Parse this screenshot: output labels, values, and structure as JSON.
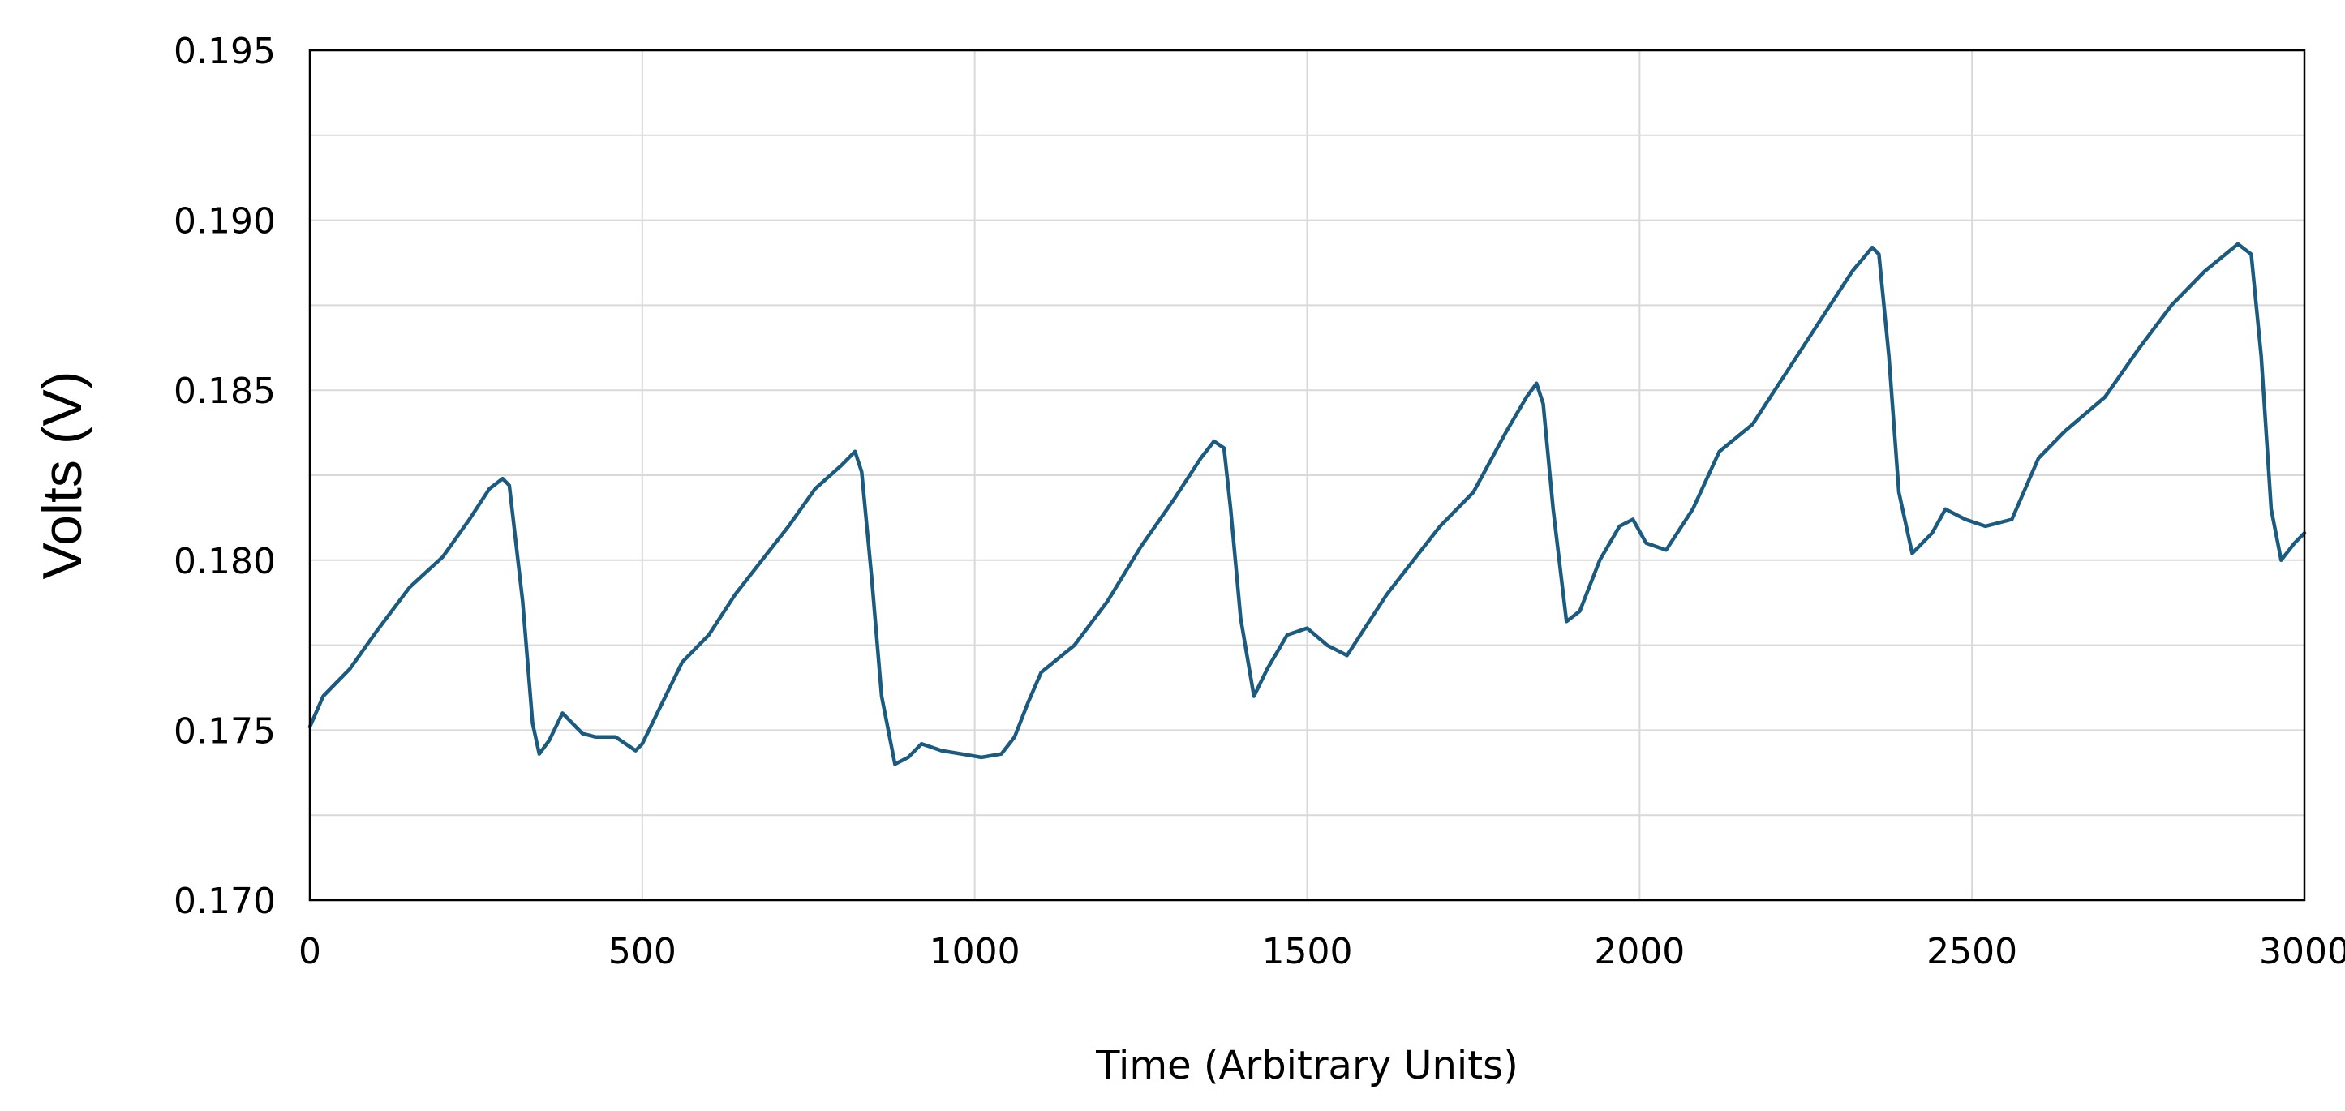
{
  "chart_data": {
    "type": "line",
    "title": "",
    "xlabel": "Time (Arbitrary Units)",
    "ylabel": "Volts (V)",
    "xlim": [
      0,
      3000
    ],
    "ylim": [
      0.17,
      0.195
    ],
    "x_ticks": [
      0,
      500,
      1000,
      1500,
      2000,
      2500,
      3000
    ],
    "x_tick_labels": [
      "0",
      "500",
      "1000",
      "1500",
      "2000",
      "2500",
      "3000"
    ],
    "y_ticks": [
      0.17,
      0.175,
      0.18,
      0.185,
      0.19,
      0.195
    ],
    "y_tick_labels": [
      "0.170",
      "0.175",
      "0.180",
      "0.185",
      "0.190",
      "0.195"
    ],
    "grid": true,
    "legend": "none",
    "series": [
      {
        "color": "#1b5b80",
        "x": [
          0,
          20,
          60,
          100,
          150,
          200,
          240,
          270,
          290,
          300,
          320,
          335,
          345,
          360,
          380,
          395,
          410,
          430,
          460,
          490,
          500,
          530,
          560,
          600,
          640,
          680,
          720,
          760,
          800,
          820,
          830,
          845,
          860,
          880,
          900,
          920,
          950,
          980,
          1010,
          1040,
          1060,
          1080,
          1100,
          1150,
          1200,
          1250,
          1300,
          1340,
          1360,
          1375,
          1385,
          1400,
          1420,
          1440,
          1470,
          1500,
          1530,
          1560,
          1580,
          1620,
          1660,
          1700,
          1750,
          1800,
          1830,
          1845,
          1855,
          1870,
          1890,
          1910,
          1940,
          1970,
          1990,
          2010,
          2040,
          2080,
          2120,
          2170,
          2220,
          2270,
          2320,
          2350,
          2360,
          2375,
          2390,
          2410,
          2440,
          2460,
          2490,
          2520,
          2560,
          2600,
          2640,
          2700,
          2750,
          2800,
          2850,
          2900,
          2920,
          2935,
          2950,
          2965,
          2985,
          3000
        ],
        "values": [
          0.1751,
          0.176,
          0.1768,
          0.1779,
          0.1792,
          0.1801,
          0.1812,
          0.1821,
          0.1824,
          0.1822,
          0.1788,
          0.1752,
          0.1743,
          0.1747,
          0.1755,
          0.1752,
          0.1749,
          0.1748,
          0.1748,
          0.1744,
          0.1746,
          0.1758,
          0.177,
          0.1778,
          0.179,
          0.18,
          0.181,
          0.1821,
          0.1828,
          0.1832,
          0.1826,
          0.1795,
          0.176,
          0.174,
          0.1742,
          0.1746,
          0.1744,
          0.1743,
          0.1742,
          0.1743,
          0.1748,
          0.1758,
          0.1767,
          0.1775,
          0.1788,
          0.1804,
          0.1818,
          0.183,
          0.1835,
          0.1833,
          0.1815,
          0.1783,
          0.176,
          0.1768,
          0.1778,
          0.178,
          0.1775,
          0.1772,
          0.1778,
          0.179,
          0.18,
          0.181,
          0.182,
          0.1838,
          0.1848,
          0.1852,
          0.1846,
          0.1815,
          0.1782,
          0.1785,
          0.18,
          0.181,
          0.1812,
          0.1805,
          0.1803,
          0.1815,
          0.1832,
          0.184,
          0.1855,
          0.187,
          0.1885,
          0.1892,
          0.189,
          0.186,
          0.182,
          0.1802,
          0.1808,
          0.1815,
          0.1812,
          0.181,
          0.1812,
          0.183,
          0.1838,
          0.1848,
          0.1862,
          0.1875,
          0.1885,
          0.1893,
          0.189,
          0.186,
          0.1815,
          0.18,
          0.1805,
          0.1808
        ]
      }
    ]
  }
}
